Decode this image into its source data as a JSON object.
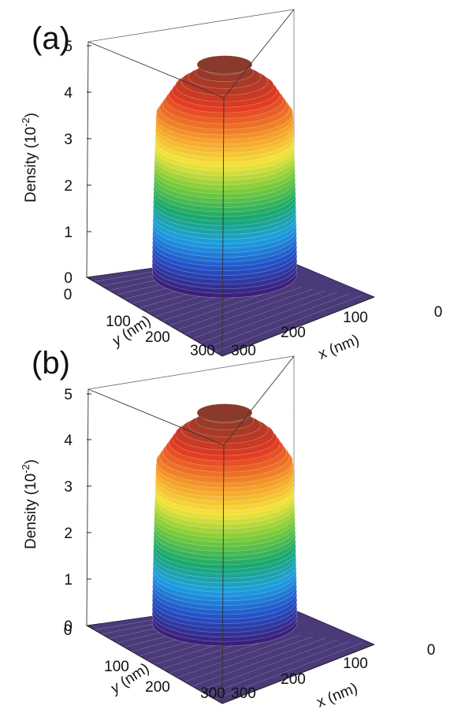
{
  "chart_data": [
    {
      "type": "surface3d",
      "panel_label": "(a)",
      "zlabel": "Density (10",
      "zlabel_exp": "-2",
      "zlabel_close": ")",
      "xlabel": "x (nm)",
      "ylabel_italic": "y",
      "ylabel_rest": " (nm)",
      "z_ticks": [
        "0",
        "1",
        "2",
        "3",
        "4",
        "5"
      ],
      "x_ticks": [
        "0",
        "100",
        "200",
        "300"
      ],
      "y_ticks": [
        "0",
        "100",
        "200",
        "300"
      ],
      "xlim": [
        0,
        300
      ],
      "ylim": [
        0,
        300
      ],
      "zlim": [
        0,
        5.4
      ],
      "shape": "flat-topped disk with smooth edge",
      "plateau_density": 4.2,
      "peak_density": 5.3,
      "baseline_density": 0,
      "colormap": [
        "#3b1f7a",
        "#2350c8",
        "#1e9ee0",
        "#1aa86a",
        "#7acb3a",
        "#f4e33a",
        "#f59a2a",
        "#e33a22",
        "#8a3a2a"
      ]
    },
    {
      "type": "surface3d",
      "panel_label": "(b)",
      "zlabel": "Density (10",
      "zlabel_exp": "-2",
      "zlabel_close": ")",
      "xlabel": "x (nm)",
      "ylabel_italic": "y",
      "ylabel_rest": " (nm)",
      "z_ticks": [
        "0",
        "1",
        "2",
        "3",
        "4",
        "5"
      ],
      "x_ticks": [
        "0",
        "100",
        "200",
        "300"
      ],
      "y_ticks": [
        "0",
        "100",
        "200",
        "300"
      ],
      "xlim": [
        0,
        300
      ],
      "ylim": [
        0,
        300
      ],
      "zlim": [
        0,
        5.4
      ],
      "shape": "flat-topped disk with smooth edge",
      "plateau_density": 4.3,
      "peak_density": 5.3,
      "baseline_density": 0,
      "colormap": [
        "#3b1f7a",
        "#2350c8",
        "#1e9ee0",
        "#1aa86a",
        "#7acb3a",
        "#f4e33a",
        "#f59a2a",
        "#e33a22",
        "#8a3a2a"
      ]
    }
  ]
}
